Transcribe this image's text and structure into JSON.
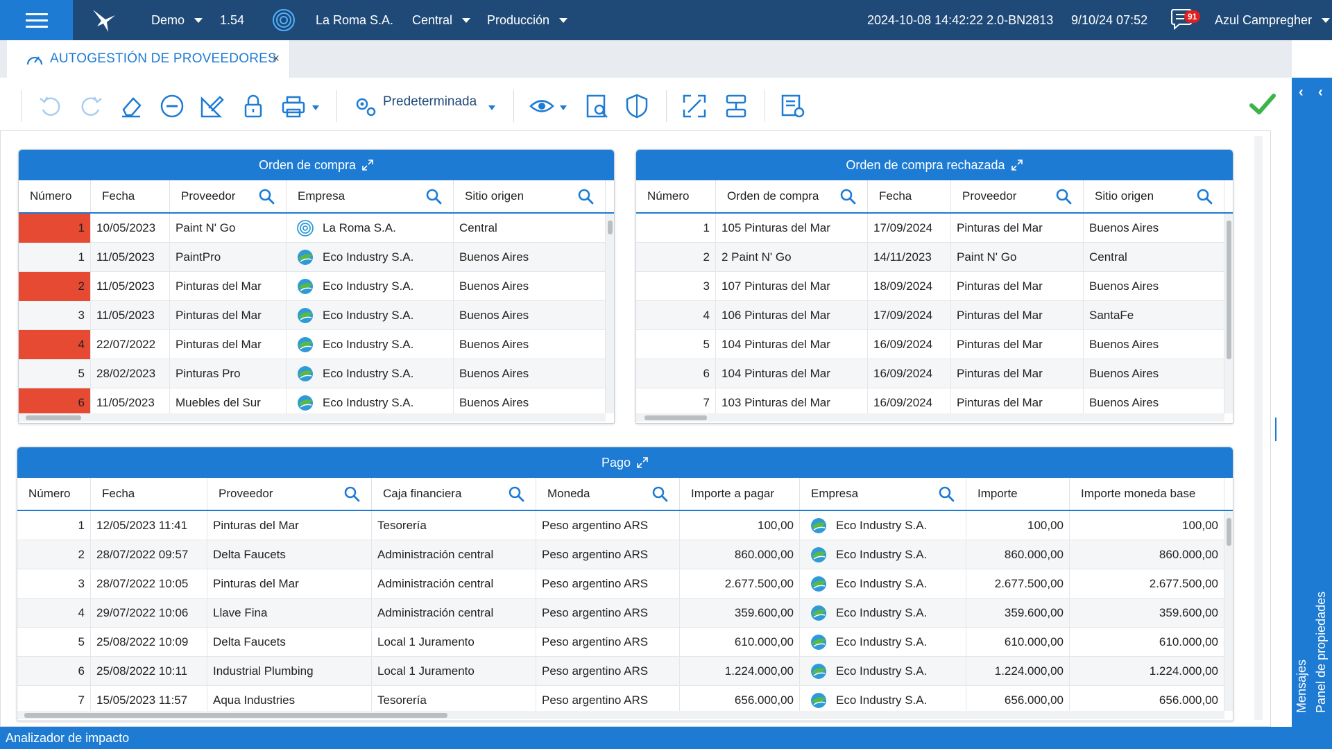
{
  "topbar": {
    "env": "Demo",
    "version": "1.54",
    "company": "La Roma S.A.",
    "site": "Central",
    "mode": "Producción",
    "build": "2024-10-08 14:42:22 2.0-BN2813",
    "date": "9/10/24 07:52",
    "messages_count": "91",
    "user": "Azul Campregher"
  },
  "tab": {
    "title": "AUTOGESTIÓN DE PROVEEDORES",
    "close": "×"
  },
  "toolbar": {
    "preset": "Predeterminada"
  },
  "right_panel": {
    "properties": "Panel de propiedades",
    "messages": "Mensajes"
  },
  "bottom": {
    "label": "Analizador de impacto"
  },
  "colors": {
    "accent": "#1d7bd4",
    "nav": "#1f4a78",
    "highlight": "#e64a33",
    "ok": "#3bb54a"
  },
  "orders": {
    "title": "Orden de compra",
    "columns": [
      "Número",
      "Fecha",
      "Proveedor",
      "Empresa",
      "Sitio origen"
    ],
    "rows": [
      {
        "num": "1",
        "fecha": "10/05/2023",
        "proveedor": "Paint N' Go",
        "empresa": "La Roma S.A.",
        "sitio": "Central",
        "flag": true,
        "icon": "roma"
      },
      {
        "num": "1",
        "fecha": "11/05/2023",
        "proveedor": "PaintPro",
        "empresa": "Eco Industry S.A.",
        "sitio": "Buenos Aires",
        "flag": false,
        "icon": "eco"
      },
      {
        "num": "2",
        "fecha": "11/05/2023",
        "proveedor": "Pinturas del Mar",
        "empresa": "Eco Industry S.A.",
        "sitio": "Buenos Aires",
        "flag": true,
        "icon": "eco"
      },
      {
        "num": "3",
        "fecha": "11/05/2023",
        "proveedor": "Pinturas del Mar",
        "empresa": "Eco Industry S.A.",
        "sitio": "Buenos Aires",
        "flag": false,
        "icon": "eco"
      },
      {
        "num": "4",
        "fecha": "22/07/2022",
        "proveedor": "Pinturas del Mar",
        "empresa": "Eco Industry S.A.",
        "sitio": "Buenos Aires",
        "flag": true,
        "icon": "eco"
      },
      {
        "num": "5",
        "fecha": "28/02/2023",
        "proveedor": "Pinturas Pro",
        "empresa": "Eco Industry S.A.",
        "sitio": "Buenos Aires",
        "flag": false,
        "icon": "eco"
      },
      {
        "num": "6",
        "fecha": "11/05/2023",
        "proveedor": "Muebles del Sur",
        "empresa": "Eco Industry S.A.",
        "sitio": "Buenos Aires",
        "flag": true,
        "icon": "eco"
      }
    ]
  },
  "rejected": {
    "title": "Orden de compra rechazada",
    "columns": [
      "Número",
      "Orden de compra",
      "Fecha",
      "Proveedor",
      "Sitio origen"
    ],
    "rows": [
      {
        "num": "1",
        "orden": "105 Pinturas del Mar",
        "fecha": "17/09/2024",
        "proveedor": "Pinturas del Mar",
        "sitio": "Buenos Aires"
      },
      {
        "num": "2",
        "orden": "2 Paint N' Go",
        "fecha": "14/11/2023",
        "proveedor": "Paint N' Go",
        "sitio": "Central"
      },
      {
        "num": "3",
        "orden": "107 Pinturas del Mar",
        "fecha": "18/09/2024",
        "proveedor": "Pinturas del Mar",
        "sitio": "Buenos Aires"
      },
      {
        "num": "4",
        "orden": "106 Pinturas del Mar",
        "fecha": "17/09/2024",
        "proveedor": "Pinturas del Mar",
        "sitio": "SantaFe"
      },
      {
        "num": "5",
        "orden": "104 Pinturas del Mar",
        "fecha": "16/09/2024",
        "proveedor": "Pinturas del Mar",
        "sitio": "Buenos Aires"
      },
      {
        "num": "6",
        "orden": "104 Pinturas del Mar",
        "fecha": "16/09/2024",
        "proveedor": "Pinturas del Mar",
        "sitio": "Buenos Aires"
      },
      {
        "num": "7",
        "orden": "103 Pinturas del Mar",
        "fecha": "16/09/2024",
        "proveedor": "Pinturas del Mar",
        "sitio": "Buenos Aires"
      }
    ]
  },
  "payments": {
    "title": "Pago",
    "columns": [
      "Número",
      "Fecha",
      "Proveedor",
      "Caja financiera",
      "Moneda",
      "Importe a pagar",
      "Empresa",
      "Importe",
      "Importe moneda base"
    ],
    "rows": [
      {
        "num": "1",
        "fecha": "12/05/2023 11:41",
        "proveedor": "Pinturas del Mar",
        "caja": "Tesorería",
        "moneda": "Peso argentino ARS",
        "apagar": "100,00",
        "empresa": "Eco Industry S.A.",
        "importe": "100,00",
        "base": "100,00"
      },
      {
        "num": "2",
        "fecha": "28/07/2022 09:57",
        "proveedor": "Delta Faucets",
        "caja": "Administración central",
        "moneda": "Peso argentino ARS",
        "apagar": "860.000,00",
        "empresa": "Eco Industry S.A.",
        "importe": "860.000,00",
        "base": "860.000,00"
      },
      {
        "num": "3",
        "fecha": "28/07/2022 10:05",
        "proveedor": "Pinturas del Mar",
        "caja": "Administración central",
        "moneda": "Peso argentino ARS",
        "apagar": "2.677.500,00",
        "empresa": "Eco Industry S.A.",
        "importe": "2.677.500,00",
        "base": "2.677.500,00"
      },
      {
        "num": "4",
        "fecha": "29/07/2022 10:06",
        "proveedor": "Llave Fina",
        "caja": "Administración central",
        "moneda": "Peso argentino ARS",
        "apagar": "359.600,00",
        "empresa": "Eco Industry S.A.",
        "importe": "359.600,00",
        "base": "359.600,00"
      },
      {
        "num": "5",
        "fecha": "25/08/2022 10:09",
        "proveedor": "Delta Faucets",
        "caja": "Local 1 Juramento",
        "moneda": "Peso argentino ARS",
        "apagar": "610.000,00",
        "empresa": "Eco Industry S.A.",
        "importe": "610.000,00",
        "base": "610.000,00"
      },
      {
        "num": "6",
        "fecha": "25/08/2022 10:11",
        "proveedor": "Industrial Plumbing",
        "caja": "Local 1 Juramento",
        "moneda": "Peso argentino ARS",
        "apagar": "1.224.000,00",
        "empresa": "Eco Industry S.A.",
        "importe": "1.224.000,00",
        "base": "1.224.000,00"
      },
      {
        "num": "7",
        "fecha": "15/05/2023 11:57",
        "proveedor": "Aqua Industries",
        "caja": "Tesorería",
        "moneda": "Peso argentino ARS",
        "apagar": "656.000,00",
        "empresa": "Eco Industry S.A.",
        "importe": "656.000,00",
        "base": "656.000,00"
      }
    ]
  }
}
